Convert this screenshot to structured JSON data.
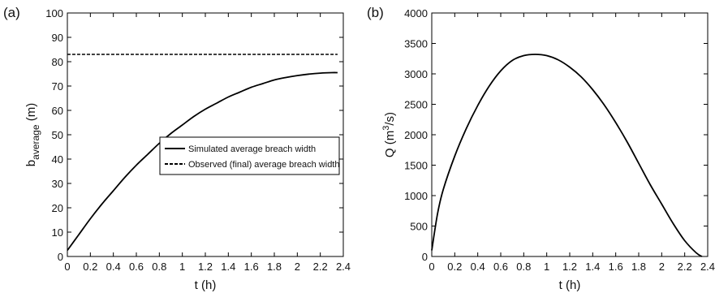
{
  "chart_data": [
    {
      "type": "line",
      "panel_label": "(a)",
      "xlabel": "t (h)",
      "ylabel": "b",
      "ylabel_subscript": "average",
      "ylabel_unit": " (m)",
      "xlim": [
        0,
        2.4
      ],
      "ylim": [
        0,
        100
      ],
      "xticks": [
        0,
        0.2,
        0.4,
        0.6,
        0.8,
        1,
        1.2,
        1.4,
        1.6,
        1.8,
        2,
        2.2,
        2.4
      ],
      "yticks": [
        0,
        10,
        20,
        30,
        40,
        50,
        60,
        70,
        80,
        90,
        100
      ],
      "grid": false,
      "legend_position": "center-right",
      "series": [
        {
          "name": "Simulated average breach width",
          "style": "solid",
          "x": [
            0,
            0.1,
            0.2,
            0.3,
            0.4,
            0.5,
            0.6,
            0.7,
            0.8,
            0.9,
            1.0,
            1.1,
            1.2,
            1.3,
            1.4,
            1.5,
            1.6,
            1.7,
            1.8,
            1.9,
            2.0,
            2.1,
            2.2,
            2.3,
            2.35
          ],
          "y": [
            2.5,
            9,
            15.5,
            21.5,
            27,
            32.5,
            37.5,
            42,
            46.5,
            50.5,
            54,
            57.5,
            60.5,
            63,
            65.5,
            67.5,
            69.5,
            71,
            72.5,
            73.5,
            74.3,
            74.9,
            75.3,
            75.5,
            75.5
          ]
        },
        {
          "name": "Observed (final) average breach width",
          "style": "dashed",
          "x": [
            0,
            2.35
          ],
          "y": [
            83,
            83
          ]
        }
      ]
    },
    {
      "type": "line",
      "panel_label": "(b)",
      "xlabel": "t (h)",
      "ylabel": "Q (m",
      "ylabel_superscript": "3",
      "ylabel_unit": "/s)",
      "xlim": [
        0,
        2.4
      ],
      "ylim": [
        0,
        4000
      ],
      "xticks": [
        0,
        0.2,
        0.4,
        0.6,
        0.8,
        1,
        1.2,
        1.4,
        1.6,
        1.8,
        2,
        2.2,
        2.4
      ],
      "yticks": [
        0,
        500,
        1000,
        1500,
        2000,
        2500,
        3000,
        3500,
        4000
      ],
      "grid": false,
      "series": [
        {
          "style": "solid",
          "x": [
            0,
            0.05,
            0.1,
            0.2,
            0.3,
            0.4,
            0.5,
            0.6,
            0.7,
            0.8,
            0.9,
            1.0,
            1.1,
            1.2,
            1.3,
            1.4,
            1.5,
            1.6,
            1.7,
            1.8,
            1.9,
            2.0,
            2.1,
            2.2,
            2.3,
            2.35
          ],
          "y": [
            100,
            700,
            1100,
            1650,
            2100,
            2480,
            2800,
            3050,
            3220,
            3300,
            3320,
            3300,
            3230,
            3110,
            2950,
            2740,
            2490,
            2200,
            1880,
            1530,
            1180,
            860,
            540,
            260,
            60,
            0
          ]
        }
      ]
    }
  ]
}
